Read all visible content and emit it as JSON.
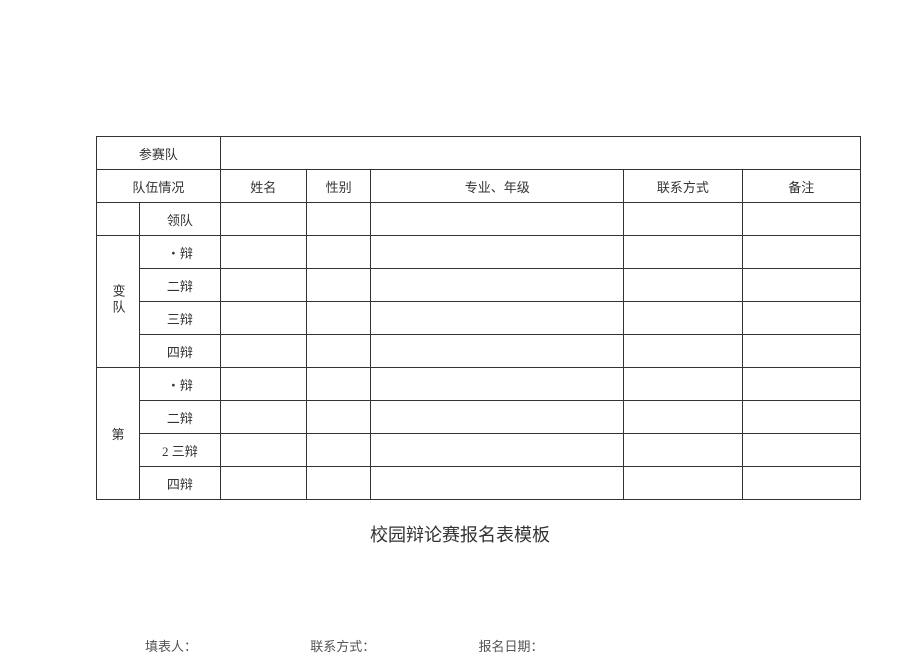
{
  "table": {
    "row_team": {
      "label": "参赛队"
    },
    "row_status": {
      "label": "队伍情况"
    },
    "headers": {
      "name": "姓名",
      "gender": "性别",
      "major": "专业、年级",
      "contact": "联系方式",
      "remark": "备注"
    },
    "leader_label": "领队",
    "group1": {
      "label": "变队",
      "debater1": "・辩",
      "debater2": "二辩",
      "debater3": "三辩",
      "debater4": "四辩"
    },
    "group2": {
      "label": "第",
      "debater1": "・辩",
      "debater2": "二辩",
      "debater3": "2 三辩",
      "debater4": "四辩"
    }
  },
  "title": "校园辩论赛报名表模板",
  "footer": {
    "filler": "填表人：",
    "contact": "联系方式：",
    "date": "报名日期："
  },
  "style": {
    "background_color": "#ffffff",
    "border_color": "#333333",
    "text_color": "#333333",
    "footer_color": "#555555",
    "body_fontsize": 13,
    "title_fontsize": 18
  }
}
